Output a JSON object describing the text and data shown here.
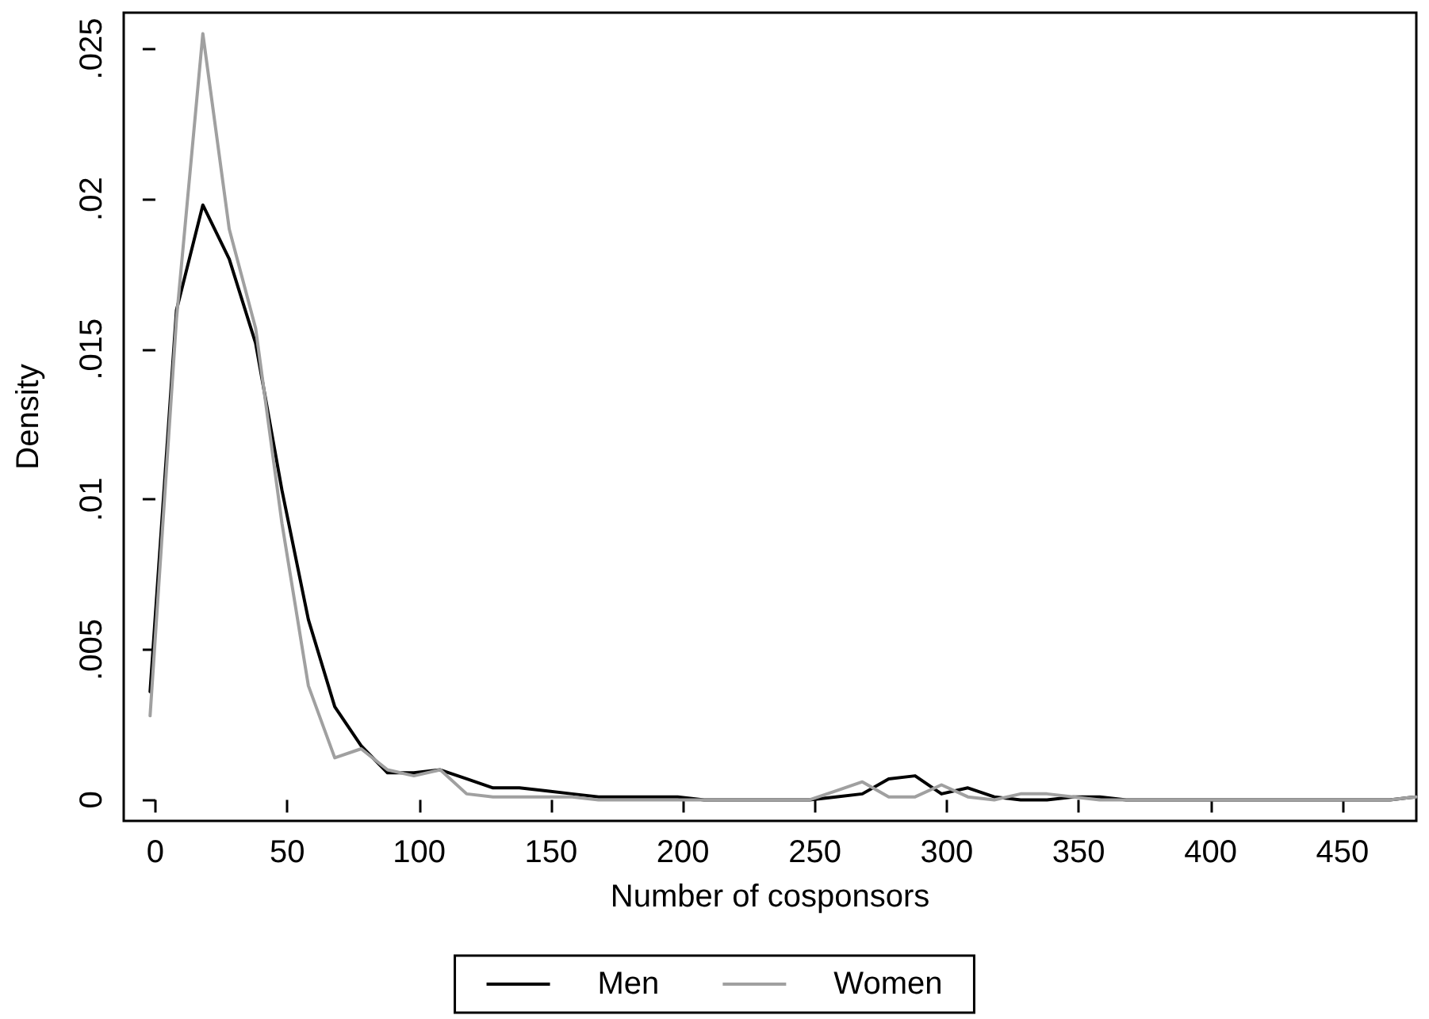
{
  "chart_data": {
    "type": "line",
    "xlabel": "Number of cosponsors",
    "ylabel": "Density",
    "x": [
      -2,
      8,
      18,
      28,
      38,
      48,
      58,
      68,
      78,
      88,
      98,
      108,
      118,
      128,
      138,
      148,
      158,
      168,
      178,
      188,
      198,
      208,
      218,
      228,
      238,
      248,
      258,
      268,
      278,
      288,
      298,
      308,
      318,
      328,
      338,
      348,
      358,
      368,
      378,
      388,
      398,
      408,
      418,
      428,
      438,
      448,
      458,
      468,
      478
    ],
    "series": [
      {
        "name": "Men",
        "color": "#000000",
        "values": [
          0.0036,
          0.0163,
          0.0198,
          0.018,
          0.0152,
          0.0103,
          0.006,
          0.0031,
          0.0018,
          0.0009,
          0.0009,
          0.001,
          0.0007,
          0.0004,
          0.0004,
          0.0003,
          0.0002,
          0.0001,
          0.0001,
          0.0001,
          0.0001,
          0,
          0,
          0,
          0,
          0,
          0.0001,
          0.0002,
          0.0007,
          0.0008,
          0.0002,
          0.0004,
          0.0001,
          0,
          0,
          0.0001,
          0.0001,
          0,
          0,
          0,
          0,
          0,
          0,
          0,
          0,
          0,
          0,
          0,
          0.0001
        ]
      },
      {
        "name": "Women",
        "color": "#a0a0a0",
        "values": [
          0.0028,
          0.016,
          0.0255,
          0.019,
          0.0157,
          0.0092,
          0.0038,
          0.0014,
          0.0017,
          0.001,
          0.0008,
          0.001,
          0.0002,
          0.0001,
          0.0001,
          0.0001,
          0.0001,
          0,
          0,
          0,
          0,
          0,
          0,
          0,
          0,
          0,
          0.0003,
          0.0006,
          0.0001,
          0.0001,
          0.0005,
          0.0001,
          0,
          0.0002,
          0.0002,
          0.0001,
          0,
          0,
          0,
          0,
          0,
          0,
          0,
          0,
          0,
          0,
          0,
          0,
          0.0001
        ]
      }
    ],
    "xlim": [
      -12,
      478
    ],
    "xticks": [
      0,
      50,
      100,
      150,
      200,
      250,
      300,
      350,
      400,
      450
    ],
    "ylim": [
      -0.0007,
      0.0262
    ],
    "yticks": [
      0,
      {
        "value": 0.005,
        "label": ".005"
      },
      {
        "value": 0.01,
        "label": ".01"
      },
      {
        "value": 0.015,
        "label": ".015"
      },
      {
        "value": 0.02,
        "label": ".02"
      },
      {
        "value": 0.025,
        "label": ".025"
      }
    ],
    "grid": false,
    "legend": "bottom",
    "marker": "none",
    "line_style": "solid"
  }
}
